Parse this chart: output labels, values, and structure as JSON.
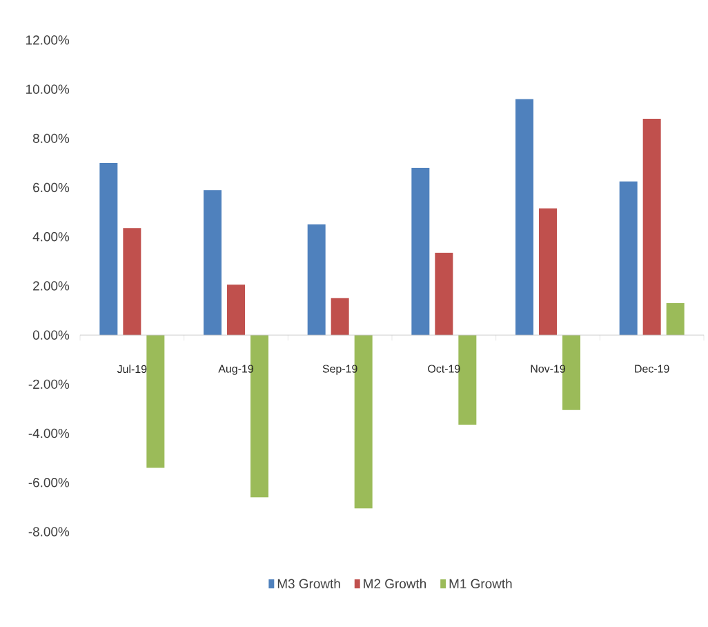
{
  "chart_data": {
    "type": "bar",
    "categories": [
      "Jul-19",
      "Aug-19",
      "Sep-19",
      "Oct-19",
      "Nov-19",
      "Dec-19"
    ],
    "series": [
      {
        "name": "M3 Growth",
        "color": "#4f81bd",
        "values": [
          7.0,
          5.9,
          4.5,
          6.8,
          9.6,
          6.25
        ]
      },
      {
        "name": "M2 Growth",
        "color": "#c0504d",
        "values": [
          4.35,
          2.05,
          1.5,
          3.35,
          5.15,
          8.8
        ]
      },
      {
        "name": "M1 Growth",
        "color": "#9bbb59",
        "values": [
          -5.4,
          -6.6,
          -7.05,
          -3.65,
          -3.05,
          1.3
        ]
      }
    ],
    "ylim": [
      -8,
      12
    ],
    "yticks": [
      {
        "value": -8,
        "label": "-8.00%"
      },
      {
        "value": -6,
        "label": "-6.00%"
      },
      {
        "value": -4,
        "label": "-4.00%"
      },
      {
        "value": -2,
        "label": "-2.00%"
      },
      {
        "value": 0,
        "label": "0.00%"
      },
      {
        "value": 2,
        "label": "2.00%"
      },
      {
        "value": 4,
        "label": "4.00%"
      },
      {
        "value": 6,
        "label": "6.00%"
      },
      {
        "value": 8,
        "label": "8.00%"
      },
      {
        "value": 10,
        "label": "10.00%"
      },
      {
        "value": 12,
        "label": "12.00%"
      }
    ],
    "legend": "bottom"
  }
}
